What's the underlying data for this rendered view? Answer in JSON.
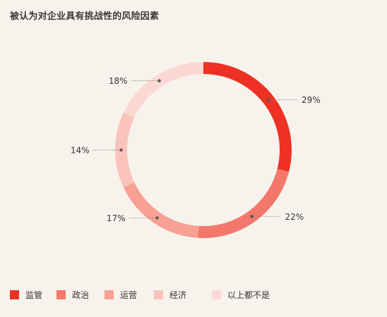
{
  "title": "被认为对企业具有挑战性的风险因素",
  "chart_data": {
    "type": "pie",
    "variant": "donut",
    "title": "被认为对企业具有挑战性的风险因素",
    "categories": [
      "监管",
      "政治",
      "运营",
      "经济",
      "以上都不是"
    ],
    "values": [
      29,
      22,
      17,
      14,
      18
    ],
    "labels": [
      "29%",
      "22%",
      "17%",
      "14%",
      "18%"
    ],
    "colors": [
      "#ee3124",
      "#f4776b",
      "#f8a093",
      "#fac4bc",
      "#fcd8d4"
    ],
    "legend_position": "bottom-left"
  }
}
